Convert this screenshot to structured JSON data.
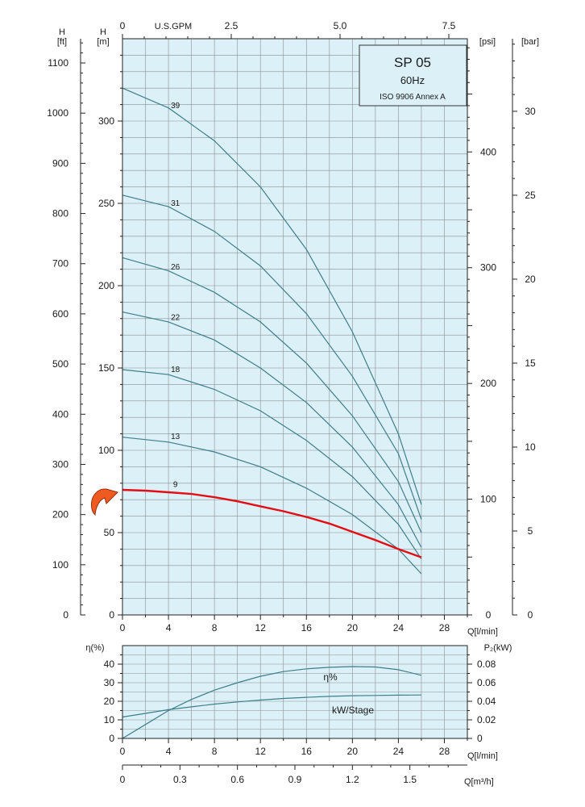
{
  "colors": {
    "plot_bg": "#dcf0f8",
    "grid": "#8a8f93",
    "curve": "#3e7e8a",
    "highlight": "#e30d14",
    "arrow": "#ef5a20"
  },
  "legend_box": {
    "title": "SP 05",
    "freq": "60Hz",
    "standard": "ISO 9906 Annex A"
  },
  "axis_labels": {
    "h_ft_letter": "H",
    "h_ft_unit": "[ft]",
    "h_m_letter": "H",
    "h_m_unit": "[m]",
    "usgpm": "U.S.GPM",
    "psi": "[psi]",
    "bar": "[bar]",
    "q_lmin": "Q[l/min]",
    "eta": "η(%)",
    "p2": "P₂(kW)",
    "q_lmin_lower": "Q[l/min]",
    "q_m3h": "Q[m³/h]"
  },
  "annotations": {
    "eta_curve": "η%",
    "kw_curve": "kW/Stage"
  },
  "chart_data": [
    {
      "type": "line",
      "title": "SP 05",
      "x_unit": "l/min",
      "xlim": [
        0,
        30
      ],
      "ylim": [
        0,
        350
      ],
      "x_ticks": [
        0,
        4,
        8,
        12,
        16,
        20,
        24,
        28
      ],
      "y_ticks_m": [
        0,
        50,
        100,
        150,
        200,
        250,
        300
      ],
      "y_ticks_ft": [
        0,
        100,
        200,
        300,
        400,
        500,
        600,
        700,
        800,
        900,
        1000,
        1100
      ],
      "y_ticks_psi": [
        0,
        100,
        200,
        300,
        400
      ],
      "y_ticks_bar": [
        0,
        5,
        10,
        15,
        20,
        25,
        30
      ],
      "top_ticks_usgpm": [
        "0",
        "2.5",
        "5.0",
        "7.5"
      ],
      "highlighted_series": "9",
      "series": [
        {
          "name": "39",
          "x": [
            0,
            4,
            8,
            12,
            16,
            20,
            24,
            26
          ],
          "y": [
            320,
            308,
            288,
            260,
            222,
            172,
            110,
            67
          ]
        },
        {
          "name": "31",
          "x": [
            0,
            4,
            8,
            12,
            16,
            20,
            24,
            26
          ],
          "y": [
            255,
            248,
            233,
            212,
            183,
            145,
            98,
            58
          ]
        },
        {
          "name": "26",
          "x": [
            0,
            4,
            8,
            12,
            16,
            20,
            24,
            26
          ],
          "y": [
            217,
            209,
            196,
            178,
            153,
            121,
            81,
            50
          ]
        },
        {
          "name": "22",
          "x": [
            0,
            4,
            8,
            12,
            16,
            20,
            24,
            26
          ],
          "y": [
            184,
            178,
            167,
            150,
            129,
            102,
            67,
            41
          ]
        },
        {
          "name": "18",
          "x": [
            0,
            4,
            8,
            12,
            16,
            20,
            24,
            26
          ],
          "y": [
            149,
            146,
            137,
            124,
            106,
            84,
            55,
            34
          ]
        },
        {
          "name": "13",
          "x": [
            0,
            4,
            8,
            12,
            16,
            20,
            24,
            26
          ],
          "y": [
            108,
            105,
            99,
            90,
            77,
            61,
            40,
            25
          ]
        },
        {
          "name": "9",
          "x": [
            0,
            2,
            4,
            6,
            8,
            10,
            12,
            14,
            16,
            18,
            20,
            22,
            24,
            26
          ],
          "y": [
            76,
            75.5,
            74.5,
            73.5,
            71.5,
            69,
            66,
            63,
            59.5,
            55.5,
            50.5,
            45.5,
            40,
            35
          ]
        }
      ]
    },
    {
      "type": "line",
      "x_unit": "l/min",
      "xlim": [
        0,
        30
      ],
      "x_ticks": [
        0,
        4,
        8,
        12,
        16,
        20,
        24,
        28
      ],
      "x_ticks_m3h": [
        "0",
        "0.3",
        "0.6",
        "0.9",
        "1.2",
        "1.5"
      ],
      "y_left_ticks_eta": [
        0,
        10,
        20,
        30,
        40
      ],
      "y_left_lim": [
        0,
        50
      ],
      "y_right_ticks_kw": [
        "0",
        "0.02",
        "0.04",
        "0.06",
        "0.08"
      ],
      "y_right_lim": [
        0,
        0.1
      ],
      "series": [
        {
          "name": "η%",
          "axis": "left",
          "x": [
            0,
            2,
            4,
            6,
            8,
            10,
            12,
            14,
            16,
            18,
            20,
            22,
            24,
            26
          ],
          "y": [
            0,
            7.5,
            15,
            21,
            26,
            30,
            33.5,
            36,
            37.5,
            38.3,
            38.7,
            38.5,
            37,
            34
          ]
        },
        {
          "name": "kW/Stage",
          "axis": "right",
          "x": [
            0,
            2,
            4,
            6,
            8,
            10,
            12,
            14,
            16,
            18,
            20,
            22,
            24,
            26
          ],
          "y": [
            0.023,
            0.027,
            0.031,
            0.034,
            0.037,
            0.0393,
            0.0413,
            0.043,
            0.0443,
            0.0453,
            0.046,
            0.0463,
            0.0466,
            0.0468
          ]
        }
      ]
    }
  ]
}
